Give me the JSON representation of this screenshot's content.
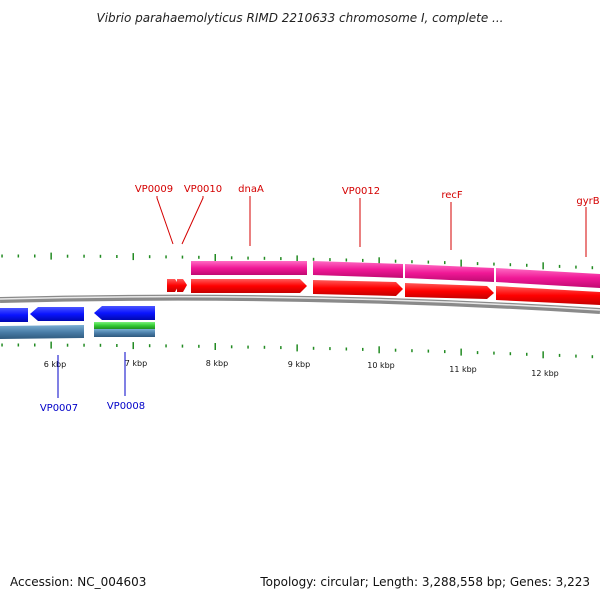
{
  "title": "Vibrio parahaemolyticus RIMD 2210633 chromosome I, complete ...",
  "footer": {
    "accession": "Accession: NC_004603",
    "summary": "Topology: circular; Length: 3,288,558 bp; Genes: 3,223"
  },
  "colors": {
    "forward_cds": "#ff0000",
    "forward_gene": "#ff1a9a",
    "reverse_cds": "#0a14ff",
    "reverse_gene": "#4a7ea8",
    "reverse_rna": "#33cc33",
    "ticks": "#228b22",
    "label_forward": "#d40000",
    "label_reverse": "#0000c8",
    "backbone": "#8a8a8a"
  },
  "scale_labels": [
    "6 kbp",
    "7 kbp",
    "8 kbp",
    "9 kbp",
    "10 kbp",
    "11 kbp",
    "12 kbp"
  ],
  "labels_forward": [
    "VP0009",
    "VP0010",
    "dnaA",
    "VP0012",
    "recF",
    "gyrB"
  ],
  "labels_reverse": [
    "VP0007",
    "VP0008"
  ]
}
